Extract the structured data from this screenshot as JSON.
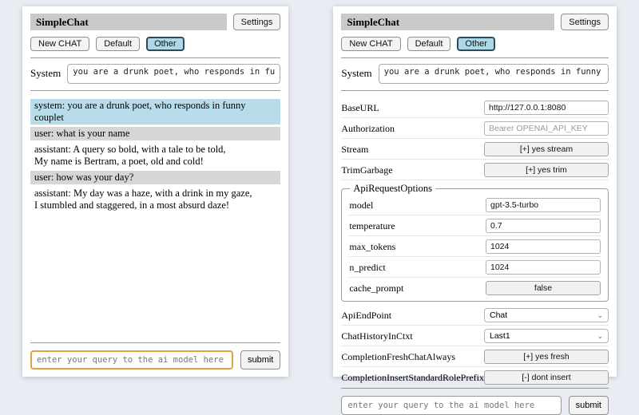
{
  "colors": {
    "page_background": "#e9edf3",
    "titlebar_bg": "#c9c9c9",
    "active_tab_bg": "#add8e6",
    "system_message_bg": "#b9dcea",
    "user_message_bg": "#d6d6d6",
    "focused_input_border": "#dfa23e"
  },
  "header": {
    "title": "SimpleChat",
    "settings_label": "Settings"
  },
  "toolbar": {
    "new_chat": "New CHAT",
    "default_session": "Default",
    "other_session": "Other"
  },
  "system_prompt": {
    "label": "System",
    "value": "you are a drunk poet, who responds in funny couplet"
  },
  "chat": {
    "messages": [
      {
        "role": "system",
        "text": "system: you are a drunk poet, who responds in funny couplet"
      },
      {
        "role": "user",
        "text": "user: what is your name"
      },
      {
        "role": "assistant",
        "text": "assistant: A query so bold, with a tale to be told,\nMy name is Bertram, a poet, old and cold!"
      },
      {
        "role": "user",
        "text": "user: how was your day?"
      },
      {
        "role": "assistant",
        "text": "assistant: My day was a haze, with a drink in my gaze,\nI stumbled and staggered, in a most absurd daze!"
      }
    ]
  },
  "settings": {
    "base_url": {
      "label": "BaseURL",
      "value": "http://127.0.0.1:8080"
    },
    "authorization": {
      "label": "Authorization",
      "placeholder": "Bearer OPENAI_API_KEY"
    },
    "stream": {
      "label": "Stream",
      "value": "[+] yes stream"
    },
    "trim_garbage": {
      "label": "TrimGarbage",
      "value": "[+] yes trim"
    },
    "api_request_options": {
      "legend": "ApiRequestOptions",
      "model": {
        "label": "model",
        "value": "gpt-3.5-turbo"
      },
      "temperature": {
        "label": "temperature",
        "value": "0.7"
      },
      "max_tokens": {
        "label": "max_tokens",
        "value": "1024"
      },
      "n_predict": {
        "label": "n_predict",
        "value": "1024"
      },
      "cache_prompt": {
        "label": "cache_prompt",
        "value": "false"
      }
    },
    "api_endpoint": {
      "label": "ApiEndPoint",
      "value": "Chat"
    },
    "chat_history_in_ctxt": {
      "label": "ChatHistoryInCtxt",
      "value": "Last1"
    },
    "completion_fresh_chat_always": {
      "label": "CompletionFreshChatAlways",
      "value": "[+] yes fresh"
    },
    "completion_insert_standard_role_prefix": {
      "label": "CompletionInsertStandardRolePrefix",
      "value": "[-] dont insert"
    }
  },
  "query": {
    "placeholder": "enter your query to the ai model here",
    "submit_label": "submit"
  },
  "icons": {
    "chevron_down": "⌄"
  }
}
